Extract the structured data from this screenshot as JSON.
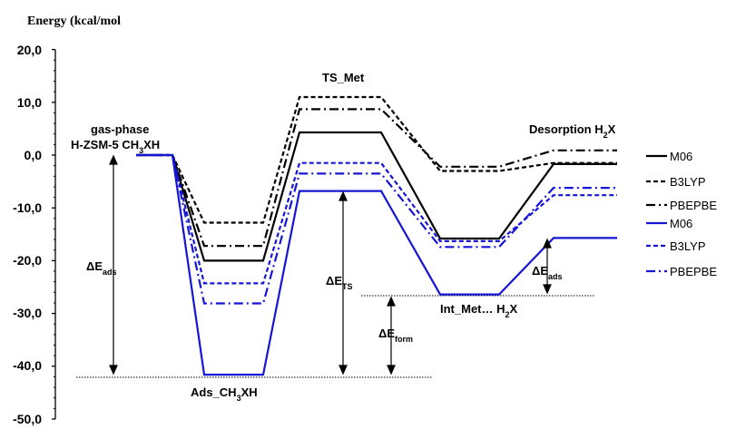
{
  "chart_data": {
    "type": "line",
    "ylabel": "Energy (kcal/mol",
    "ylim": [
      -50,
      20
    ],
    "yticks": [
      "20,0",
      "10,0",
      "0,0",
      "-10,0",
      "-20,0",
      "-30,0",
      "-40,0",
      "-50,0"
    ],
    "ytick_values": [
      20,
      10,
      0,
      -10,
      -20,
      -30,
      -40,
      -50
    ],
    "states": [
      "gas-phase H-ZSM-5 CH3XH",
      "Ads_CH3XH",
      "TS_Met",
      "Int_Met… H2X",
      "Desorption H2X"
    ],
    "series": [
      {
        "name": "M06",
        "color": "#000000",
        "dash": "solid",
        "values": [
          0.0,
          -20.0,
          4.3,
          -15.8,
          -1.7
        ]
      },
      {
        "name": "B3LYP",
        "color": "#000000",
        "dash": "dash",
        "values": [
          0.0,
          -12.8,
          11.0,
          -3.0,
          -1.5
        ]
      },
      {
        "name": "PBEPBE",
        "color": "#000000",
        "dash": "dashdot",
        "values": [
          0.0,
          -17.2,
          8.7,
          -2.2,
          0.9
        ]
      },
      {
        "name": "M06",
        "color": "#1515d6",
        "dash": "solid",
        "values": [
          0.0,
          -41.6,
          -6.8,
          -26.4,
          -15.7
        ]
      },
      {
        "name": "B3LYP",
        "color": "#1515d6",
        "dash": "dash",
        "values": [
          0.0,
          -24.3,
          -1.5,
          -16.3,
          -7.6
        ]
      },
      {
        "name": "PBEPBE",
        "color": "#1515d6",
        "dash": "dashdot",
        "values": [
          0.0,
          -28.1,
          -3.5,
          -17.4,
          -6.2
        ]
      }
    ],
    "state_labels": {
      "gas_phase_1": "gas-phase",
      "gas_phase_2_main": "H-ZSM-5 CH",
      "gas_phase_2_sub": "3",
      "gas_phase_2_end": "XH",
      "ts": "TS_Met",
      "desorption_main": "Desorption H",
      "desorption_sub": "2",
      "desorption_end": "X",
      "int_main": "Int_Met… H",
      "int_sub": "2",
      "int_end": "X",
      "ads_main": "Ads_CH",
      "ads_sub": "3",
      "ads_end": "XH"
    },
    "annotations": {
      "delta": "ΔE",
      "ads_sub": "ads",
      "ts_sub": "TS",
      "form_sub": "form"
    },
    "legend_placement": "right",
    "grid": false
  }
}
